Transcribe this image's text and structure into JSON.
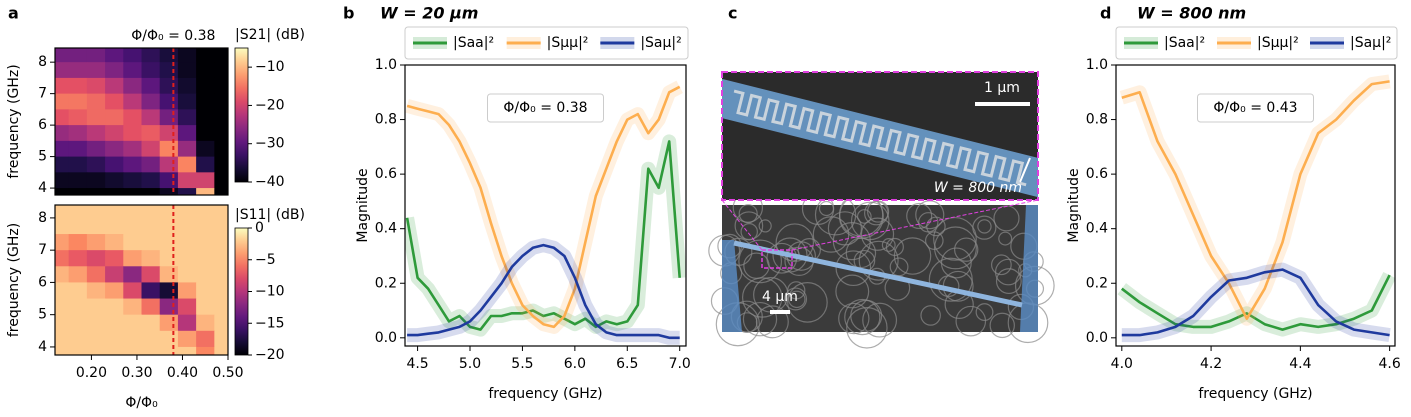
{
  "chart_data": [
    {
      "type": "heatmap",
      "panel": "a",
      "annotation": "Φ/Φ₀ = 0.38",
      "marker_x": 0.38,
      "colormap": "magma",
      "x": [
        0.13,
        0.17,
        0.21,
        0.25,
        0.29,
        0.33,
        0.37,
        0.41,
        0.45,
        0.49
      ],
      "y": [
        8.25,
        7.75,
        7.25,
        6.75,
        6.25,
        5.75,
        5.25,
        4.75,
        4.25,
        3.75
      ],
      "z": [
        [
          -28,
          -28,
          -28,
          -30,
          -32,
          -34,
          -36,
          -38,
          -40,
          -40
        ],
        [
          -25,
          -25,
          -25,
          -27,
          -30,
          -33,
          -35,
          -38,
          -40,
          -40
        ],
        [
          -18,
          -18,
          -19,
          -22,
          -26,
          -30,
          -34,
          -37,
          -40,
          -40
        ],
        [
          -15,
          -15,
          -16,
          -18,
          -22,
          -27,
          -32,
          -36,
          -40,
          -40
        ],
        [
          -18,
          -17,
          -16,
          -16,
          -18,
          -22,
          -28,
          -34,
          -40,
          -40
        ],
        [
          -25,
          -24,
          -22,
          -20,
          -18,
          -17,
          -20,
          -30,
          -40,
          -40
        ],
        [
          -30,
          -30,
          -28,
          -26,
          -24,
          -20,
          -14,
          -25,
          -38,
          -40
        ],
        [
          -35,
          -35,
          -34,
          -32,
          -30,
          -28,
          -22,
          -14,
          -35,
          -40
        ],
        [
          -38,
          -38,
          -38,
          -37,
          -36,
          -35,
          -32,
          -20,
          -20,
          -40
        ],
        [
          -40,
          -40,
          -40,
          -40,
          -40,
          -40,
          -38,
          -35,
          -10,
          -40
        ]
      ],
      "xlim": [
        0.12,
        0.5
      ],
      "ylim": [
        3.78,
        8.45
      ],
      "yticks": [
        4,
        5,
        6,
        7,
        8
      ],
      "ylabel": "frequency (GHz)",
      "colorbar": {
        "label": "|S21| (dB)",
        "clim": [
          -40,
          -5
        ],
        "ticks": [
          {
            "value": -10,
            "label": "−10"
          },
          {
            "value": -20,
            "label": "−20"
          },
          {
            "value": -30,
            "label": "−30"
          },
          {
            "value": -40,
            "label": "−40"
          }
        ]
      }
    },
    {
      "type": "heatmap",
      "marker_x": 0.38,
      "colormap": "magma",
      "x": [
        0.13,
        0.17,
        0.21,
        0.25,
        0.29,
        0.33,
        0.37,
        0.41,
        0.45,
        0.49
      ],
      "y": [
        8.25,
        7.75,
        7.25,
        6.75,
        6.25,
        5.75,
        5.25,
        4.75,
        4.25,
        3.75
      ],
      "z": [
        [
          -2,
          -2,
          -2,
          -2,
          -2,
          -2,
          -2,
          -2,
          -2,
          -2
        ],
        [
          -2,
          -2,
          -2,
          -2,
          -2,
          -2,
          -2,
          -2,
          -2,
          -2
        ],
        [
          -4,
          -5,
          -4,
          -3,
          -2,
          -2,
          -2,
          -2,
          -2,
          -2
        ],
        [
          -6,
          -7,
          -8,
          -7,
          -4,
          -3,
          -2,
          -2,
          -2,
          -2
        ],
        [
          -3,
          -4,
          -6,
          -9,
          -12,
          -8,
          -3,
          -2,
          -2,
          -2
        ],
        [
          -2,
          -2,
          -3,
          -4,
          -8,
          -16,
          -18,
          -4,
          -2,
          -2
        ],
        [
          -2,
          -2,
          -2,
          -2,
          -3,
          -6,
          -12,
          -8,
          -2,
          -2
        ],
        [
          -2,
          -2,
          -2,
          -2,
          -2,
          -2,
          -4,
          -10,
          -3,
          -2
        ],
        [
          -2,
          -2,
          -2,
          -2,
          -2,
          -2,
          -2,
          -4,
          -6,
          -2
        ],
        [
          -2,
          -2,
          -2,
          -2,
          -2,
          -2,
          -2,
          -2,
          -5,
          -2
        ]
      ],
      "xlim": [
        0.12,
        0.5
      ],
      "ylim": [
        3.75,
        8.4
      ],
      "yticks": [
        4,
        5,
        6,
        7,
        8
      ],
      "xticks": [
        {
          "value": 0.2,
          "label": "0.20"
        },
        {
          "value": 0.3,
          "label": "0.30"
        },
        {
          "value": 0.4,
          "label": "0.40"
        },
        {
          "value": 0.5,
          "label": "0.50"
        }
      ],
      "xlabel": "Φ/Φ₀",
      "ylabel": "frequency (GHz)",
      "colorbar": {
        "label": "|S11| (dB)",
        "clim": [
          -20,
          0
        ],
        "ticks": [
          0,
          {
            "value": -5,
            "label": "−5"
          },
          {
            "value": -10,
            "label": "−10"
          },
          {
            "value": -15,
            "label": "−15"
          },
          {
            "value": -20,
            "label": "−20"
          }
        ]
      }
    },
    {
      "type": "line",
      "panel": "b",
      "title": "W = 20 μm",
      "annotation": "Φ/Φ₀ = 0.38",
      "x": [
        4.4,
        4.5,
        4.6,
        4.7,
        4.8,
        4.9,
        5.0,
        5.1,
        5.2,
        5.3,
        5.4,
        5.5,
        5.6,
        5.7,
        5.8,
        5.9,
        6.0,
        6.1,
        6.2,
        6.3,
        6.4,
        6.5,
        6.6,
        6.7,
        6.8,
        6.9,
        7.0
      ],
      "series": [
        {
          "name": "|Saa|²",
          "color": "#2e9a3a",
          "values": [
            0.44,
            0.22,
            0.18,
            0.12,
            0.06,
            0.08,
            0.04,
            0.03,
            0.08,
            0.08,
            0.09,
            0.09,
            0.1,
            0.08,
            0.09,
            0.07,
            0.05,
            0.07,
            0.04,
            0.06,
            0.05,
            0.06,
            0.12,
            0.62,
            0.55,
            0.72,
            0.22
          ]
        },
        {
          "name": "|Sμμ|²",
          "color": "#fdae4f",
          "values": [
            0.85,
            0.84,
            0.83,
            0.82,
            0.78,
            0.72,
            0.64,
            0.55,
            0.42,
            0.3,
            0.2,
            0.12,
            0.08,
            0.05,
            0.04,
            0.08,
            0.18,
            0.35,
            0.52,
            0.62,
            0.72,
            0.8,
            0.82,
            0.75,
            0.8,
            0.9,
            0.92
          ]
        },
        {
          "name": "|Saμ|²",
          "color": "#1f3a9e",
          "values": [
            0.01,
            0.01,
            0.015,
            0.02,
            0.03,
            0.04,
            0.06,
            0.1,
            0.15,
            0.2,
            0.26,
            0.3,
            0.33,
            0.34,
            0.33,
            0.3,
            0.22,
            0.12,
            0.05,
            0.02,
            0.01,
            0.01,
            0.01,
            0.01,
            0.01,
            0,
            0
          ]
        }
      ],
      "xlim": [
        4.38,
        7.06
      ],
      "ylim": [
        -0.03,
        1.0
      ],
      "xticks": [
        4.5,
        {
          "value": 5,
          "label": "5.0"
        },
        5.5,
        {
          "value": 6,
          "label": "6.0"
        },
        6.5,
        {
          "value": 7,
          "label": "7.0"
        }
      ],
      "yticks": [
        {
          "value": 0,
          "label": "0.0"
        },
        0.2,
        0.4,
        0.6,
        0.8,
        {
          "value": 1,
          "label": "1.0"
        }
      ],
      "xlabel": "frequency (GHz)",
      "ylabel": "Magnitude"
    },
    {
      "type": "image",
      "panel": "c",
      "scale_top": "1 μm",
      "width_label": "W = 800 nm",
      "scale_bottom": "4 μm"
    },
    {
      "type": "line",
      "panel": "d",
      "title": "W = 800 nm",
      "annotation": "Φ/Φ₀ = 0.43",
      "x": [
        4.0,
        4.04,
        4.08,
        4.12,
        4.16,
        4.2,
        4.24,
        4.28,
        4.32,
        4.36,
        4.4,
        4.44,
        4.48,
        4.52,
        4.56,
        4.6
      ],
      "series": [
        {
          "name": "|Saa|²",
          "color": "#2e9a3a",
          "values": [
            0.18,
            0.13,
            0.09,
            0.05,
            0.04,
            0.04,
            0.06,
            0.09,
            0.05,
            0.03,
            0.05,
            0.04,
            0.05,
            0.07,
            0.1,
            0.23
          ]
        },
        {
          "name": "|Sμμ|²",
          "color": "#fdae4f",
          "values": [
            0.88,
            0.9,
            0.72,
            0.6,
            0.45,
            0.3,
            0.2,
            0.07,
            0.18,
            0.35,
            0.6,
            0.75,
            0.8,
            0.87,
            0.93,
            0.94
          ]
        },
        {
          "name": "|Saμ|²",
          "color": "#1f3a9e",
          "values": [
            0.01,
            0.01,
            0.02,
            0.04,
            0.08,
            0.15,
            0.21,
            0.22,
            0.24,
            0.25,
            0.22,
            0.12,
            0.06,
            0.03,
            0.02,
            0.01
          ]
        }
      ],
      "xlim": [
        3.987,
        4.612
      ],
      "ylim": [
        -0.03,
        1.0
      ],
      "xticks": [
        {
          "value": 4,
          "label": "4.0"
        },
        4.2,
        4.4,
        4.6
      ],
      "yticks": [
        {
          "value": 0,
          "label": "0.0"
        },
        0.2,
        0.4,
        0.6,
        0.8,
        {
          "value": 1,
          "label": "1.0"
        }
      ],
      "xlabel": "frequency (GHz)",
      "ylabel": "Magnitude"
    }
  ]
}
